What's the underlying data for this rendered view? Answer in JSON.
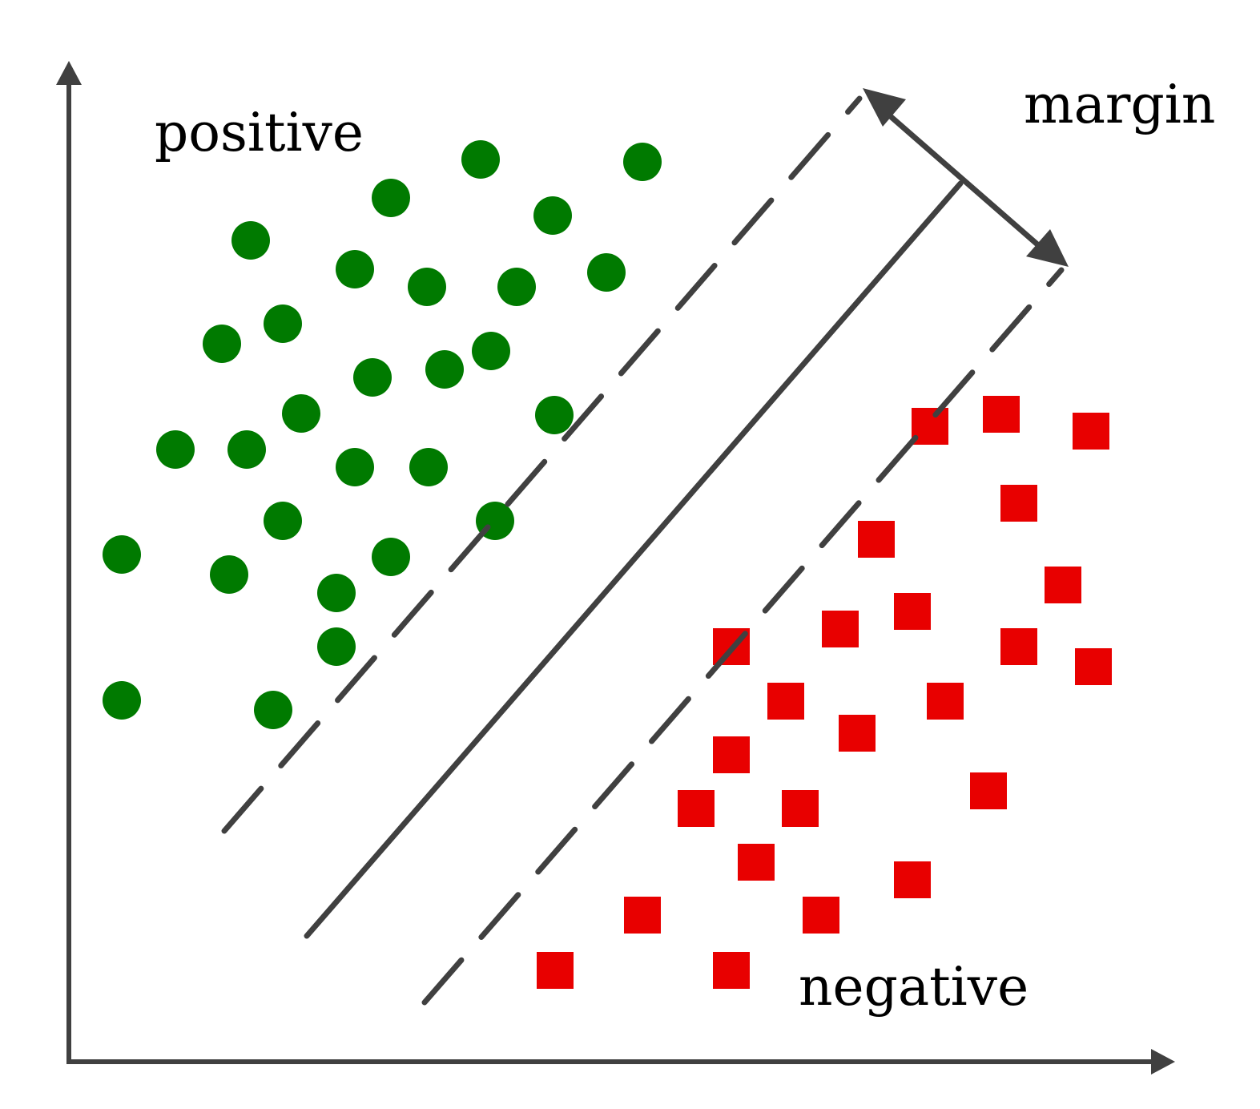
{
  "labels": {
    "positive": "positive",
    "margin": "margin",
    "negative": "negative"
  },
  "colors": {
    "positive": "#007a00",
    "negative": "#e80000",
    "lines": "#404040"
  },
  "classes": [
    {
      "name": "positive",
      "marker": "circle"
    },
    {
      "name": "negative",
      "marker": "square"
    }
  ]
}
